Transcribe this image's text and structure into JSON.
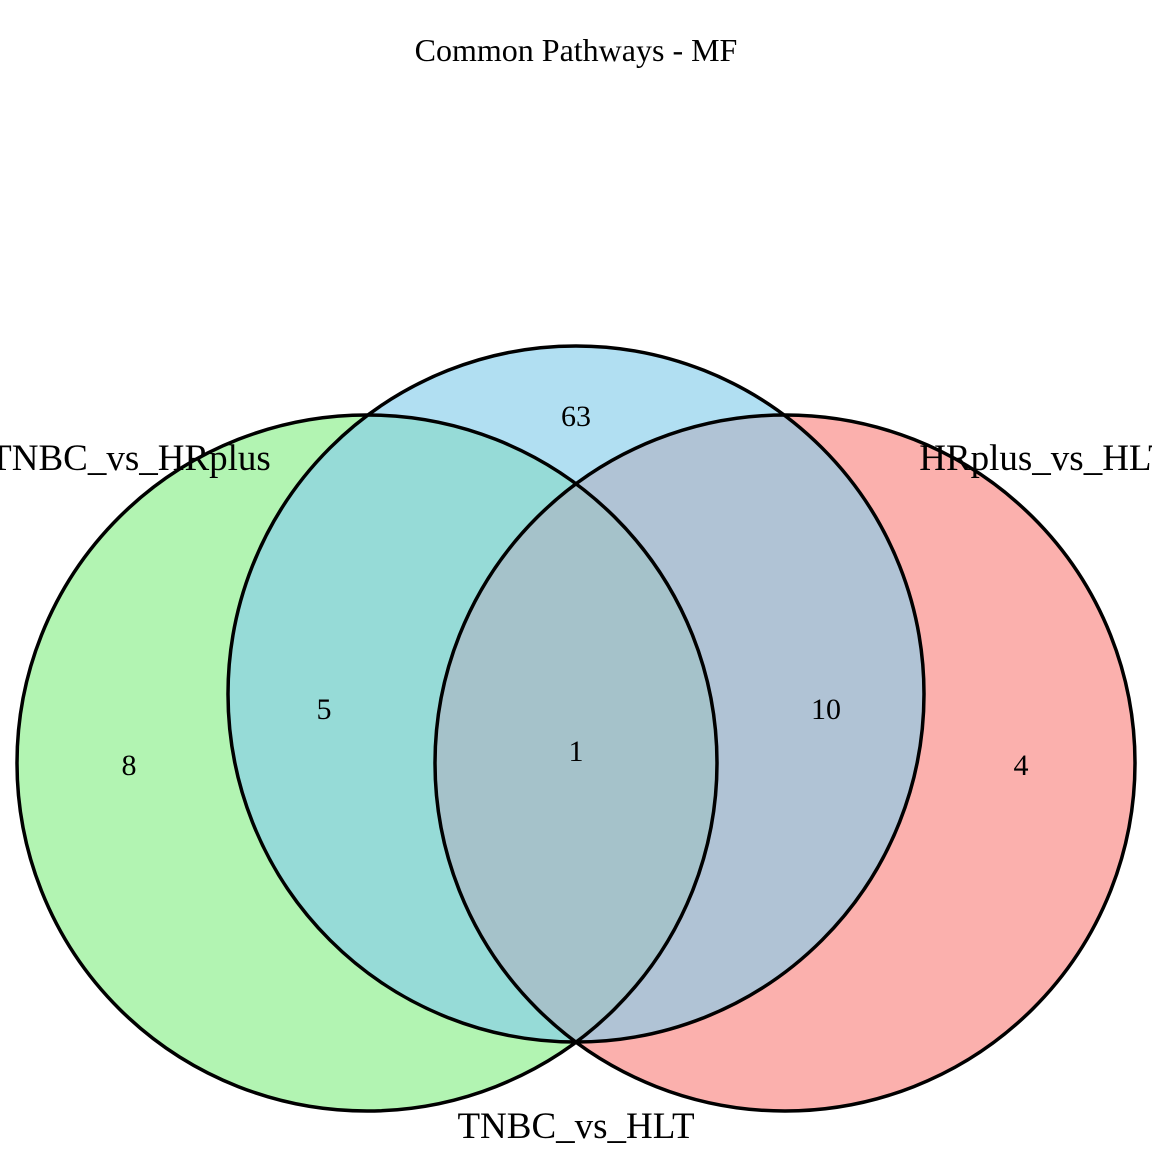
{
  "title": "Common Pathways - MF",
  "sets": [
    {
      "id": "tnbc_vs_hrplus",
      "label": "TNBC_vs_HRplus",
      "color": "#7fec7f"
    },
    {
      "id": "tnbc_vs_hlt",
      "label": "TNBC_vs_HLT",
      "color": "#87ceeb"
    },
    {
      "id": "hrplus_vs_hlt",
      "label": "HRplus_vs_HLT",
      "color": "#f87b76"
    }
  ],
  "counts": {
    "only_tnbc_vs_hrplus": "8",
    "only_tnbc_vs_hlt": "63",
    "only_hrplus_vs_hlt": "4",
    "tnbc_vs_hrplus_and_tnbc_vs_hlt": "5",
    "tnbc_vs_hlt_and_hrplus_vs_hlt": "10",
    "all_three": "1"
  }
}
